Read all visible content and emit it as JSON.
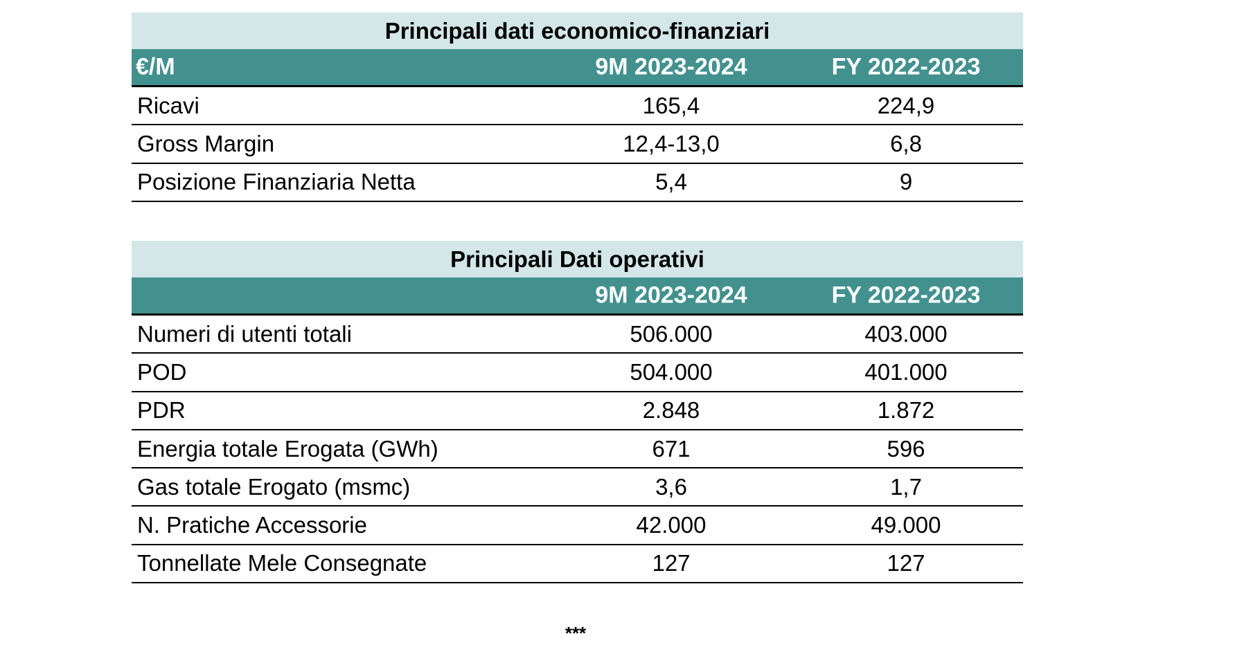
{
  "table1": {
    "title": "Principali dati economico-finanziari",
    "header": [
      "€/M",
      "9M 2023-2024",
      "FY 2022-2023"
    ],
    "rows": [
      [
        "Ricavi",
        "165,4",
        "224,9"
      ],
      [
        "Gross Margin",
        "12,4-13,0",
        "6,8"
      ],
      [
        "Posizione Finanziaria Netta",
        "5,4",
        "9"
      ]
    ]
  },
  "table2": {
    "title": "Principali Dati operativi",
    "header": [
      "",
      "9M 2023-2024",
      "FY 2022-2023"
    ],
    "rows": [
      [
        "Numeri di utenti totali",
        "506.000",
        "403.000"
      ],
      [
        "POD",
        "504.000",
        "401.000"
      ],
      [
        "PDR",
        "2.848",
        "1.872"
      ],
      [
        "Energia totale Erogata (GWh)",
        "671",
        "596"
      ],
      [
        "Gas totale Erogato (msmc)",
        "3,6",
        "1,7"
      ],
      [
        "N. Pratiche Accessorie",
        "42.000",
        "49.000"
      ],
      [
        "Tonnellate Mele Consegnate",
        "127",
        "127"
      ]
    ]
  },
  "separator": "***",
  "colors": {
    "title_bg": "#d3e6e8",
    "header_bg": "#43918f"
  }
}
